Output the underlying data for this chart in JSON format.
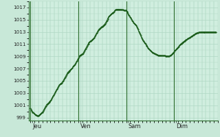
{
  "background_color": "#c8e8d8",
  "plot_bg_color": "#d0eedf",
  "grid_color": "#b0d8c4",
  "line_color": "#1a5c1a",
  "marker_color": "#1a5c1a",
  "border_color": "#2d6e2d",
  "ylim": [
    998.5,
    1018.0
  ],
  "yticks": [
    999,
    1001,
    1003,
    1005,
    1007,
    1009,
    1011,
    1013,
    1015,
    1017
  ],
  "day_labels": [
    "Jeu",
    "Ven",
    "Sam",
    "Dim"
  ],
  "pressure_values": [
    1000.5,
    1000.3,
    1000.1,
    999.9,
    999.8,
    999.7,
    999.6,
    999.5,
    999.4,
    999.4,
    999.3,
    999.3,
    999.3,
    999.4,
    999.5,
    999.6,
    999.7,
    999.8,
    999.9,
    1000.1,
    1000.3,
    1000.5,
    1000.7,
    1000.9,
    1001.1,
    1001.2,
    1001.3,
    1001.4,
    1001.5,
    1001.6,
    1001.7,
    1001.9,
    1002.1,
    1002.3,
    1002.5,
    1002.7,
    1002.9,
    1003.1,
    1003.3,
    1003.5,
    1003.7,
    1003.9,
    1004.1,
    1004.3,
    1004.4,
    1004.5,
    1004.6,
    1004.7,
    1004.85,
    1005.0,
    1005.2,
    1005.4,
    1005.6,
    1005.8,
    1006.0,
    1006.2,
    1006.4,
    1006.5,
    1006.6,
    1006.7,
    1006.8,
    1006.9,
    1007.0,
    1007.1,
    1007.3,
    1007.5,
    1007.6,
    1007.7,
    1007.9,
    1008.1,
    1008.3,
    1008.5,
    1008.7,
    1008.9,
    1009.1,
    1009.2,
    1009.3,
    1009.35,
    1009.4,
    1009.5,
    1009.7,
    1009.9,
    1010.1,
    1010.3,
    1010.5,
    1010.7,
    1010.9,
    1011.1,
    1011.25,
    1011.35,
    1011.45,
    1011.55,
    1011.65,
    1011.75,
    1011.85,
    1011.95,
    1012.1,
    1012.3,
    1012.5,
    1012.7,
    1012.9,
    1013.1,
    1013.3,
    1013.45,
    1013.55,
    1013.65,
    1013.75,
    1013.85,
    1013.9,
    1014.0,
    1014.1,
    1014.2,
    1014.35,
    1014.5,
    1014.7,
    1014.9,
    1015.1,
    1015.3,
    1015.5,
    1015.65,
    1015.75,
    1015.85,
    1015.95,
    1016.05,
    1016.15,
    1016.25,
    1016.35,
    1016.5,
    1016.6,
    1016.65,
    1016.7,
    1016.7,
    1016.7,
    1016.7,
    1016.68,
    1016.68,
    1016.67,
    1016.65,
    1016.63,
    1016.6,
    1016.58,
    1016.55,
    1016.52,
    1016.5,
    1016.45,
    1016.35,
    1016.2,
    1016.0,
    1015.8,
    1015.6,
    1015.45,
    1015.3,
    1015.1,
    1014.9,
    1014.7,
    1014.55,
    1014.45,
    1014.35,
    1014.2,
    1014.05,
    1013.85,
    1013.6,
    1013.35,
    1013.1,
    1012.85,
    1012.6,
    1012.35,
    1012.1,
    1011.85,
    1011.65,
    1011.45,
    1011.3,
    1011.15,
    1011.0,
    1010.85,
    1010.7,
    1010.55,
    1010.4,
    1010.25,
    1010.15,
    1010.05,
    1009.95,
    1009.85,
    1009.75,
    1009.65,
    1009.55,
    1009.5,
    1009.45,
    1009.4,
    1009.35,
    1009.3,
    1009.25,
    1009.2,
    1009.18,
    1009.17,
    1009.15,
    1009.13,
    1009.12,
    1009.1,
    1009.1,
    1009.1,
    1009.1,
    1009.1,
    1009.08,
    1009.06,
    1009.05,
    1009.04,
    1009.03,
    1009.03,
    1009.05,
    1009.1,
    1009.18,
    1009.28,
    1009.38,
    1009.5,
    1009.62,
    1009.75,
    1009.88,
    1010.0,
    1010.12,
    1010.24,
    1010.36,
    1010.5,
    1010.65,
    1010.78,
    1010.9,
    1011.0,
    1011.1,
    1011.2,
    1011.3,
    1011.38,
    1011.45,
    1011.52,
    1011.6,
    1011.68,
    1011.75,
    1011.82,
    1011.9,
    1011.96,
    1012.02,
    1012.1,
    1012.18,
    1012.25,
    1012.32,
    1012.4,
    1012.48,
    1012.55,
    1012.62,
    1012.7,
    1012.75,
    1012.8,
    1012.85,
    1012.9,
    1012.92,
    1012.95,
    1012.95,
    1012.97,
    1013.0,
    1013.0,
    1013.0,
    1013.0,
    1013.0,
    1013.0,
    1013.0,
    1013.0,
    1013.0,
    1013.0,
    1013.0,
    1013.0,
    1013.0,
    1013.0,
    1013.0,
    1013.0,
    1013.0,
    1013.0,
    1013.0,
    1013.0,
    1013.0,
    1013.0,
    1013.0
  ]
}
